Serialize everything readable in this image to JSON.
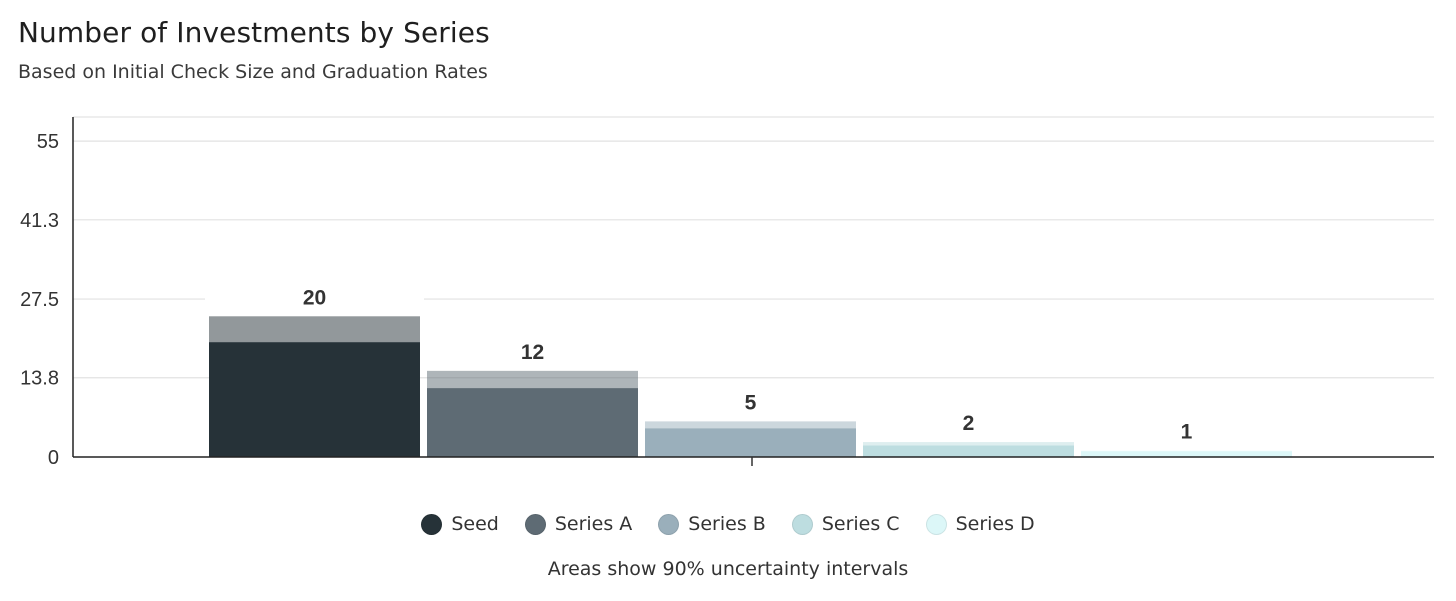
{
  "title": "Number of Investments by Series",
  "subtitle": "Based on Initial Check Size and Graduation Rates",
  "footnote": "Areas show 90% uncertainty intervals",
  "colors": {
    "Seed": "#263238",
    "Series A": "#5e6b74",
    "Series B": "#9aafbb",
    "Series C": "#bddde0",
    "Series D": "#dcf7f8"
  },
  "chart_data": {
    "type": "bar",
    "categories": [
      "Seed",
      "Series A",
      "Series B",
      "Series C",
      "Series D"
    ],
    "values": [
      20,
      12,
      5,
      2,
      1
    ],
    "upper": [
      24.5,
      15,
      6.2,
      2.6,
      1.1
    ],
    "labels": [
      "20",
      "12",
      "5",
      "2",
      "1"
    ],
    "yticks": [
      "0",
      "13.8",
      "27.5",
      "41.3",
      "55"
    ],
    "ylim": [
      0,
      59.2
    ],
    "grid": true,
    "legend_position": "bottom"
  },
  "legend": [
    {
      "label": "Seed",
      "color": "#263238"
    },
    {
      "label": "Series A",
      "color": "#5e6b74"
    },
    {
      "label": "Series B",
      "color": "#9aafbb"
    },
    {
      "label": "Series C",
      "color": "#bddde0"
    },
    {
      "label": "Series D",
      "color": "#dcf7f8"
    }
  ]
}
